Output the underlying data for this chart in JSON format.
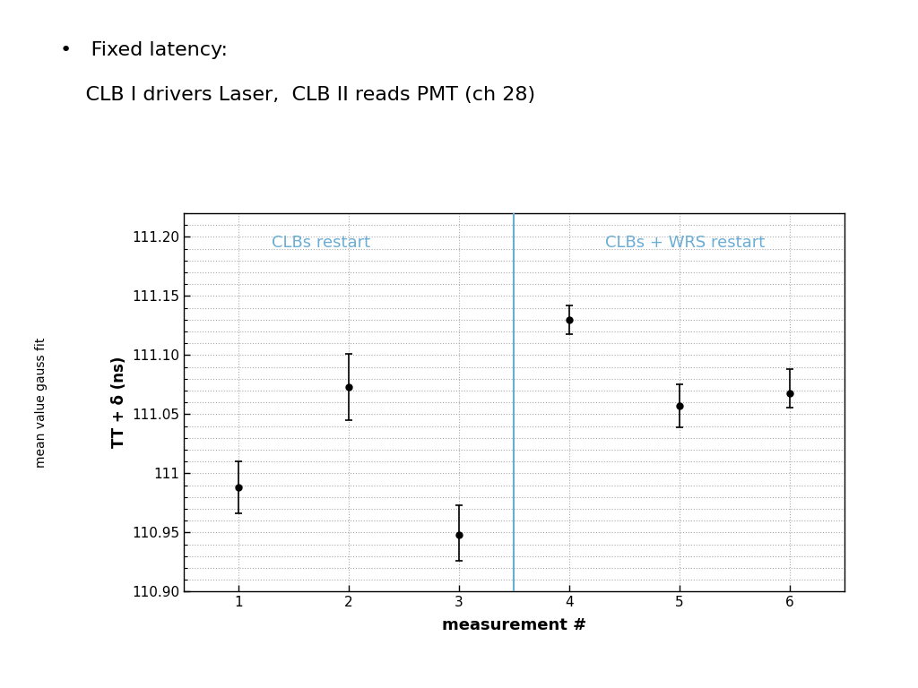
{
  "title_line1": "Fixed latency:",
  "title_line2": "    CLB I drivers Laser,  CLB II reads PMT (ch 28)",
  "x": [
    1,
    2,
    3,
    4,
    5,
    6
  ],
  "y": [
    110.988,
    111.073,
    110.948,
    111.13,
    111.057,
    111.068
  ],
  "yerr_lo": [
    0.022,
    0.028,
    0.022,
    0.012,
    0.018,
    0.012
  ],
  "yerr_hi": [
    0.022,
    0.028,
    0.025,
    0.012,
    0.018,
    0.02
  ],
  "xlabel": "measurement #",
  "ylabel_top": "TT + δ (ns)",
  "ylabel_bottom": "mean value gauss fit",
  "ylim": [
    110.9,
    111.22
  ],
  "xlim": [
    0.5,
    6.5
  ],
  "yticks": [
    110.9,
    110.95,
    111.0,
    111.05,
    111.1,
    111.15,
    111.2
  ],
  "xticks": [
    1,
    2,
    3,
    4,
    5,
    6
  ],
  "vline_x": 3.5,
  "vline_color": "#6aadd5",
  "label_left": "CLBs restart",
  "label_right": "CLBs + WRS restart",
  "label_color": "#6aadd5",
  "background_color": "#ffffff",
  "plot_bg_color": "#ffffff",
  "grid_color": "#aaaaaa",
  "marker_color": "#000000",
  "marker_size": 5,
  "capsize": 3
}
